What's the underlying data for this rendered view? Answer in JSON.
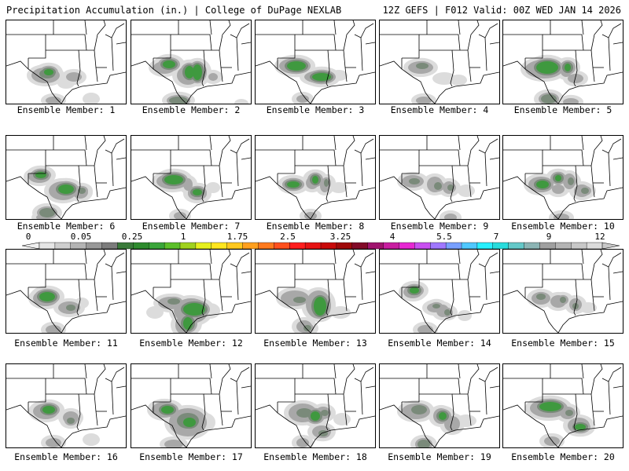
{
  "header": {
    "left": "Precipitation Accumulation (in.) | College of DuPage NEXLAB",
    "right": "12Z GEFS | F012 Valid: 00Z WED JAN 14 2026"
  },
  "panel_label_prefix": "Ensemble Member:",
  "panels": [
    {
      "member": "1"
    },
    {
      "member": "2"
    },
    {
      "member": "3"
    },
    {
      "member": "4"
    },
    {
      "member": "5"
    },
    {
      "member": "6"
    },
    {
      "member": "7"
    },
    {
      "member": "8"
    },
    {
      "member": "9"
    },
    {
      "member": "10"
    },
    {
      "member": "11"
    },
    {
      "member": "12"
    },
    {
      "member": "13"
    },
    {
      "member": "14"
    },
    {
      "member": "15"
    },
    {
      "member": "16"
    },
    {
      "member": "17"
    },
    {
      "member": "18"
    },
    {
      "member": "19"
    },
    {
      "member": "20"
    }
  ],
  "colorbar": {
    "labels": [
      "0",
      "0.05",
      "0.25",
      "1",
      "1.75",
      "2.5",
      "3.25",
      "4",
      "5.5",
      "7",
      "9",
      "12"
    ],
    "colors": [
      "#e6e6e6",
      "#cfcfcf",
      "#b4b4b4",
      "#989898",
      "#7c7c7c",
      "#3a7a3a",
      "#2e8b2e",
      "#3aa53a",
      "#5cbf2a",
      "#a0d21e",
      "#e6f01e",
      "#ffe61e",
      "#ffc81e",
      "#ffa01e",
      "#ff7a1e",
      "#ff501e",
      "#ff1e1e",
      "#e61414",
      "#c80a0a",
      "#a00a0a",
      "#820a28",
      "#a0146e",
      "#c81ea0",
      "#e628d2",
      "#c850f0",
      "#a078ff",
      "#78a0ff",
      "#50c8ff",
      "#28f0ff",
      "#28dcdc",
      "#64c8c8",
      "#8cb4b4",
      "#a0a0a0",
      "#b4b4b4",
      "#c8c8c8",
      "#dcdcdc"
    ]
  }
}
